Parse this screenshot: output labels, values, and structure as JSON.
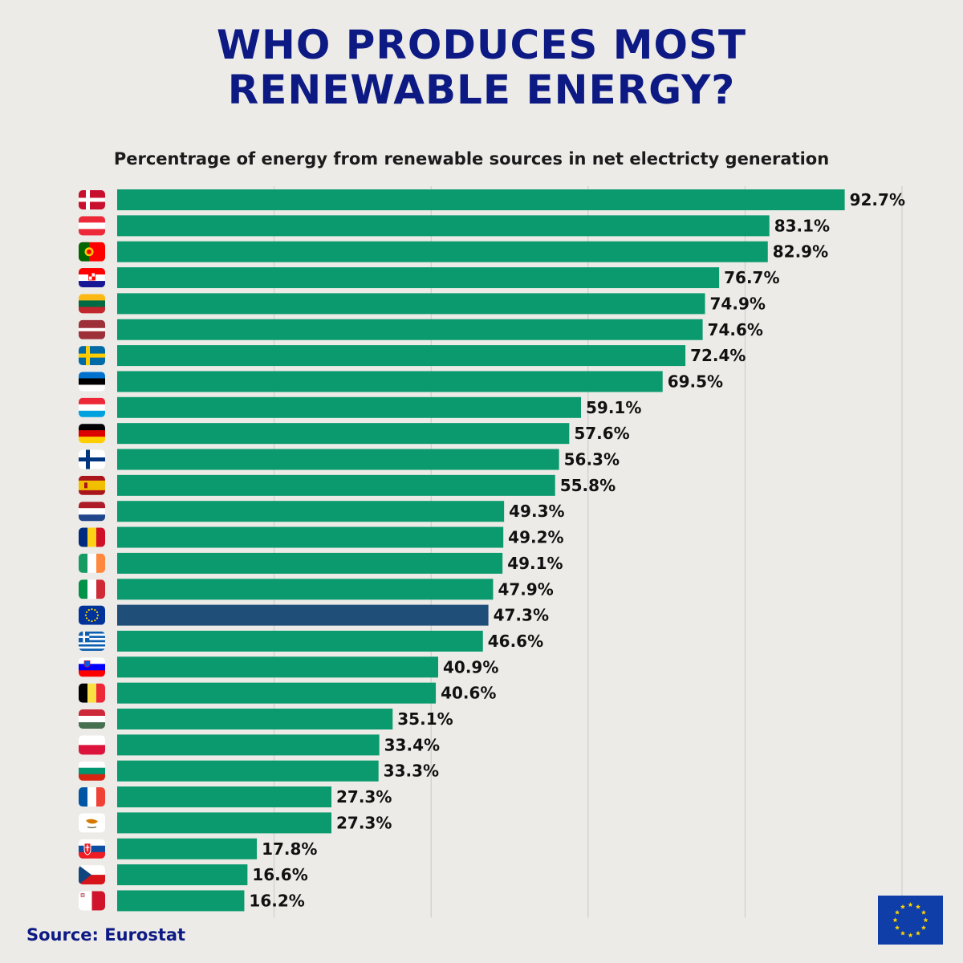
{
  "header": {
    "title_line1": "WHO PRODUCES MOST",
    "title_line2": "RENEWABLE ENERGY?"
  },
  "footer": {
    "source": "Source: Eurostat"
  },
  "colors": {
    "bar": "#0a9a6e",
    "highlight_bar": "#1f4e79",
    "title": "#0d1a84",
    "background": "#ecebe7",
    "grid": "#c8c8c8"
  },
  "chart_data": {
    "type": "bar",
    "orientation": "horizontal",
    "title": "Percentrage of energy from renewable sources in net electricty generation",
    "xlim": [
      0,
      100
    ],
    "grid": true,
    "value_suffix": "%",
    "categories": [
      "denmark-flag",
      "austria-flag",
      "portugal-flag",
      "croatia-flag",
      "lithuania-flag",
      "latvia-flag",
      "sweden-flag",
      "estonia-flag",
      "luxembourg-flag",
      "germany-flag",
      "finland-flag",
      "spain-flag",
      "netherlands-flag",
      "romania-flag",
      "ireland-flag",
      "italy-flag",
      "eu-flag",
      "greece-flag",
      "slovenia-flag",
      "belgium-flag",
      "hungary-flag",
      "poland-flag",
      "bulgaria-flag",
      "france-flag",
      "cyprus-flag",
      "slovakia-flag",
      "czechia-flag",
      "malta-flag"
    ],
    "values": [
      92.7,
      83.1,
      82.9,
      76.7,
      74.9,
      74.6,
      72.4,
      69.5,
      59.1,
      57.6,
      56.3,
      55.8,
      49.3,
      49.2,
      49.1,
      47.9,
      47.3,
      46.6,
      40.9,
      40.6,
      35.1,
      33.4,
      33.3,
      27.3,
      27.3,
      17.8,
      16.6,
      16.2
    ],
    "labels": [
      "92.7%",
      "83.1%",
      "82.9%",
      "76.7%",
      "74.9%",
      "74.6%",
      "72.4%",
      "69.5%",
      "59.1%",
      "57.6%",
      "56.3%",
      "55.8%",
      "49.3%",
      "49.2%",
      "49.1%",
      "47.9%",
      "47.3%",
      "46.6%",
      "40.9%",
      "40.6%",
      "35.1%",
      "33.4%",
      "33.3%",
      "27.3%",
      "27.3%",
      "17.8%",
      "16.6%",
      "16.2%"
    ],
    "highlight_index": 16
  }
}
